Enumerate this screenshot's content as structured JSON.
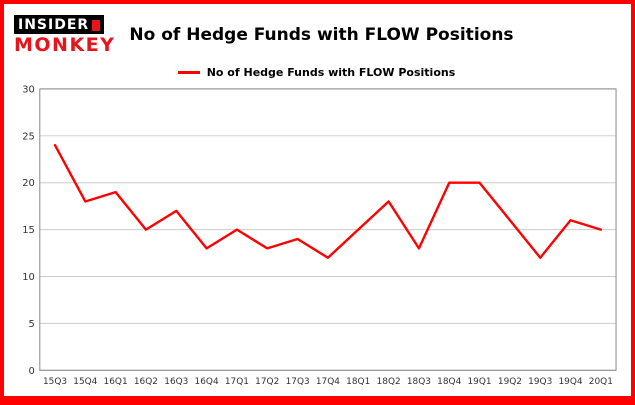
{
  "brand": {
    "logo_line1": "INSIDER",
    "logo_line2": "MONKEY"
  },
  "header": {
    "title": "No of Hedge Funds with FLOW Positions"
  },
  "legend": {
    "label": "No of Hedge Funds with FLOW Positions",
    "color": "#ff0000"
  },
  "chart_data": {
    "type": "line",
    "title": "No of Hedge Funds with FLOW Positions",
    "categories": [
      "15Q3",
      "15Q4",
      "16Q1",
      "16Q2",
      "16Q3",
      "16Q4",
      "17Q1",
      "17Q2",
      "17Q3",
      "17Q4",
      "18Q1",
      "18Q2",
      "18Q3",
      "18Q4",
      "19Q1",
      "19Q2",
      "19Q3",
      "19Q4",
      "20Q1"
    ],
    "values": [
      24,
      18,
      19,
      15,
      17,
      13,
      15,
      13,
      14,
      12,
      15,
      18,
      13,
      20,
      20,
      16,
      12,
      16,
      15
    ],
    "series": [
      {
        "name": "No of Hedge Funds with FLOW Positions",
        "values": [
          24,
          18,
          19,
          15,
          17,
          13,
          15,
          13,
          14,
          12,
          15,
          18,
          13,
          20,
          20,
          16,
          12,
          16,
          15
        ]
      }
    ],
    "xlabel": "",
    "ylabel": "",
    "ylim": [
      0,
      30
    ],
    "yticks": [
      0,
      5,
      10,
      15,
      20,
      25,
      30
    ],
    "grid": true,
    "legend_position": "top",
    "line_color": "#ff0000"
  },
  "colors": {
    "frame_border": "#ff0000",
    "background": "#ffffff",
    "gridline": "#cccccc",
    "plot_border": "#888888",
    "axis_text": "#333333"
  }
}
